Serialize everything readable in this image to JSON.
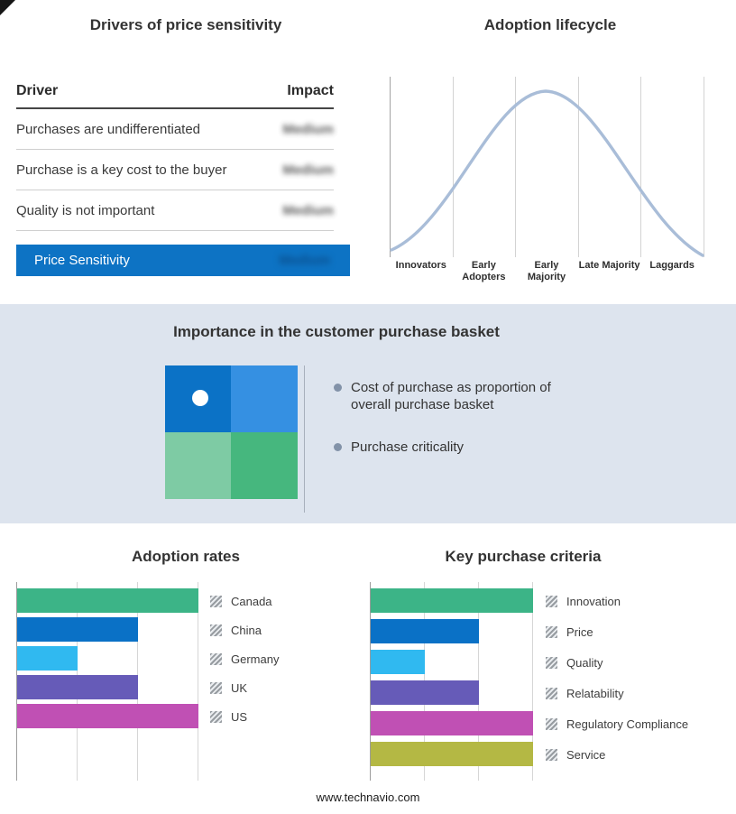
{
  "footer": {
    "text": "www.technavio.com"
  },
  "basket": {
    "title": "Importance in the customer purchase basket",
    "bullets": [
      "Cost of purchase as proportion of overall purchase basket",
      "Purchase criticality"
    ]
  },
  "chart_data": [
    {
      "id": "drivers_table",
      "type": "table",
      "title": "Drivers of price sensitivity",
      "columns": [
        "Driver",
        "Impact"
      ],
      "rows": [
        {
          "driver": "Purchases are undifferentiated",
          "impact": "Medium"
        },
        {
          "driver": "Purchase is a key cost to the buyer",
          "impact": "Medium"
        },
        {
          "driver": "Quality is not important",
          "impact": "Medium"
        }
      ],
      "summary": {
        "label": "Price Sensitivity",
        "impact": "Medium"
      },
      "impact_values_blurred": true,
      "accent_color": "#0d73c4"
    },
    {
      "id": "adoption_lifecycle",
      "type": "line",
      "title": "Adoption lifecycle",
      "categories": [
        "Innovators",
        "Early Adopters",
        "Early Majority",
        "Late Majority",
        "Laggards"
      ],
      "shape": "bell-curve",
      "peak_category": "Early Majority",
      "curve_color": "#a9bdd8"
    },
    {
      "id": "adoption_rates",
      "type": "bar",
      "orientation": "horizontal",
      "title": "Adoption rates",
      "categories": [
        "Canada",
        "China",
        "Germany",
        "UK",
        "US"
      ],
      "values": [
        3,
        2,
        1,
        2,
        3
      ],
      "colors": [
        "#3cb487",
        "#0a71c6",
        "#30b9f0",
        "#665bb8",
        "#c050b4"
      ],
      "xlim": [
        0,
        3
      ],
      "grid": true,
      "legend_position": "right"
    },
    {
      "id": "key_purchase_criteria",
      "type": "bar",
      "orientation": "horizontal",
      "title": "Key purchase criteria",
      "categories": [
        "Innovation",
        "Price",
        "Quality",
        "Relatability",
        "Regulatory Compliance",
        "Service"
      ],
      "values": [
        3,
        2,
        1,
        2,
        3,
        3
      ],
      "colors": [
        "#3cb487",
        "#0a71c6",
        "#30b9f0",
        "#665bb8",
        "#c050b4",
        "#b4b844"
      ],
      "xlim": [
        0,
        3
      ],
      "grid": true,
      "legend_position": "right"
    }
  ]
}
